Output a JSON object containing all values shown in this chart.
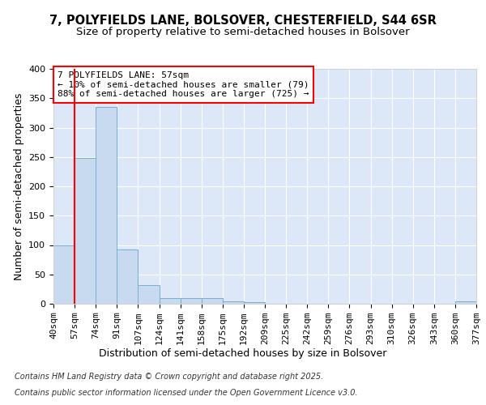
{
  "title1": "7, POLYFIELDS LANE, BOLSOVER, CHESTERFIELD, S44 6SR",
  "title2": "Size of property relative to semi-detached houses in Bolsover",
  "xlabel": "Distribution of semi-detached houses by size in Bolsover",
  "ylabel": "Number of semi-detached properties",
  "bin_edges": [
    0,
    1,
    2,
    3,
    4,
    5,
    6,
    7,
    8,
    9,
    10,
    11,
    12,
    13,
    14,
    15,
    16,
    17,
    18,
    19,
    20
  ],
  "bin_labels": [
    "40sqm",
    "57sqm",
    "74sqm",
    "91sqm",
    "107sqm",
    "124sqm",
    "141sqm",
    "158sqm",
    "175sqm",
    "192sqm",
    "209sqm",
    "225sqm",
    "242sqm",
    "259sqm",
    "276sqm",
    "293sqm",
    "310sqm",
    "326sqm",
    "343sqm",
    "360sqm",
    "377sqm"
  ],
  "values": [
    100,
    248,
    335,
    92,
    32,
    10,
    9,
    9,
    4,
    3,
    0,
    0,
    0,
    0,
    0,
    0,
    0,
    0,
    0,
    4
  ],
  "bar_facecolor": "#c8daf0",
  "bar_edgecolor": "#7aadd4",
  "redline_x": 1.0,
  "annotation_title": "7 POLYFIELDS LANE: 57sqm",
  "annotation_line1": "← 10% of semi-detached houses are smaller (79)",
  "annotation_line2": "88% of semi-detached houses are larger (725) →",
  "annotation_box_facecolor": "white",
  "annotation_box_edgecolor": "red",
  "footer_line1": "Contains HM Land Registry data © Crown copyright and database right 2025.",
  "footer_line2": "Contains public sector information licensed under the Open Government Licence v3.0.",
  "ylim": [
    0,
    400
  ],
  "plot_facecolor": "#dce8f8",
  "grid_color": "white",
  "title1_fontsize": 10.5,
  "title2_fontsize": 9.5,
  "axis_label_fontsize": 9,
  "tick_fontsize": 8,
  "footer_fontsize": 7,
  "annotation_fontsize": 8,
  "yticks": [
    0,
    50,
    100,
    150,
    200,
    250,
    300,
    350,
    400
  ]
}
